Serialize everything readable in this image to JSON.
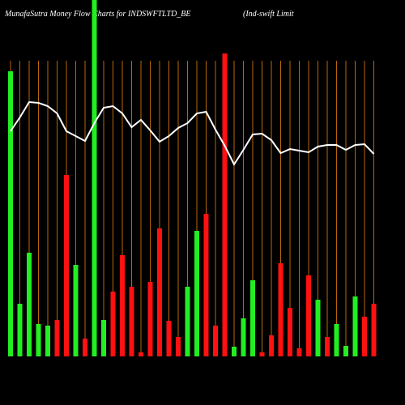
{
  "chart_data": {
    "type": "bar-line",
    "title": "MunafaSutra  Money Flow  Charts for INDSWFTLTD_BE",
    "subtitle": "(Ind-swift Limit",
    "categories": [
      null,
      null,
      null,
      null,
      null,
      null,
      null,
      null,
      null,
      null,
      null,
      null,
      null,
      null,
      null,
      null,
      null,
      null,
      null,
      null,
      null,
      null,
      null,
      null,
      null,
      null,
      null,
      null,
      null,
      null,
      null,
      null,
      null,
      null,
      null,
      null,
      null,
      null,
      null,
      null
    ],
    "ylim": [
      0,
      440
    ],
    "grid": true,
    "grid_color": "#b8660b",
    "series": [
      {
        "kind": "bar",
        "values": [
          352,
          65,
          128,
          40,
          38,
          45,
          224,
          113,
          22,
          440,
          45,
          80,
          125,
          86,
          5,
          92,
          158,
          44,
          24,
          86,
          155,
          176,
          38,
          374,
          12,
          47,
          94,
          5,
          26,
          115,
          60,
          10,
          100,
          70,
          24,
          40,
          13,
          74,
          49,
          65
        ],
        "colors": [
          "#22ee22",
          "#22ee22",
          "#22ee22",
          "#22ee22",
          "#22ee22",
          "#ff1111",
          "#ff1111",
          "#22ee22",
          "#ff1111",
          "#22ee22",
          "#22ee22",
          "#ff1111",
          "#ff1111",
          "#ff1111",
          "#ff1111",
          "#ff1111",
          "#ff1111",
          "#ff1111",
          "#ff1111",
          "#22ee22",
          "#22ee22",
          "#ff1111",
          "#ff1111",
          "#ff1111",
          "#22ee22",
          "#22ee22",
          "#22ee22",
          "#ff1111",
          "#ff1111",
          "#ff1111",
          "#ff1111",
          "#ff1111",
          "#ff1111",
          "#22ee22",
          "#ff1111",
          "#22ee22",
          "#22ee22",
          "#22ee22",
          "#ff1111",
          "#ff1111"
        ]
      },
      {
        "kind": "line",
        "color": "#ffffff",
        "values": [
          278,
          295,
          314,
          313,
          309,
          300,
          278,
          272,
          266,
          288,
          307,
          309,
          300,
          283,
          292,
          279,
          265,
          272,
          282,
          288,
          300,
          302,
          280,
          260,
          237,
          255,
          274,
          275,
          267,
          251,
          256,
          254,
          252,
          259,
          261,
          261,
          255,
          261,
          262,
          250
        ]
      }
    ]
  }
}
